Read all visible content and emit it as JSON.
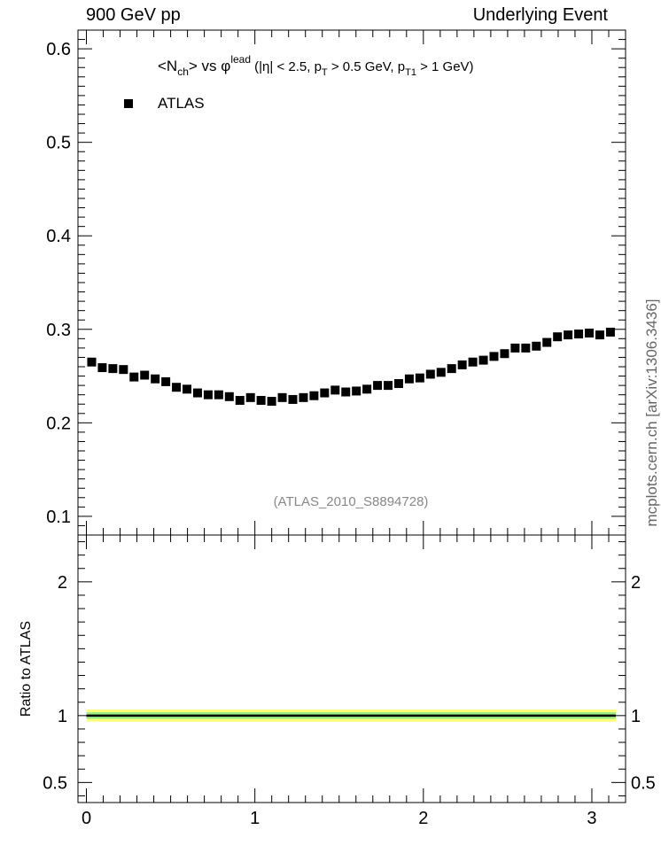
{
  "header": {
    "left": "900 GeV pp",
    "right": "Underlying Event"
  },
  "side_label": "mcplots.cern.ch [arXiv:1306.3436]",
  "reference_label": "(ATLAS_2010_S8894728)",
  "colors": {
    "data_marker": "#000000",
    "band_outer": "#ffff77",
    "band_inner": "#99ee88",
    "ref_text": "#888888"
  },
  "chart_data": [
    {
      "type": "scatter",
      "title": "<N_ch> vs φ^lead (|η| < 2.5, p_T > 0.5 GeV, p_T1 > 1 GeV)",
      "title_parts": {
        "n": "<N",
        "ch": "ch",
        "vs": "> vs φ",
        "lead": "lead",
        "cuts1": " (|η| < 2.5, p",
        "T": "T",
        "cuts2": " > 0.5 GeV, p",
        "T1": "T1",
        "cuts3": " > 1 GeV)"
      },
      "legend": "ATLAS",
      "legend_position": "top-left",
      "xlim": [
        -0.05,
        3.2
      ],
      "ylim": [
        0.08,
        0.62
      ],
      "x_ticks": [
        0,
        1,
        2,
        3
      ],
      "y_ticks": [
        0.1,
        0.2,
        0.3,
        0.4,
        0.5,
        0.6
      ],
      "y_tick_labels": [
        "0.1",
        "0.2",
        "0.3",
        "0.4",
        "0.5",
        "0.6"
      ],
      "series": [
        {
          "name": "ATLAS",
          "x": [
            0.0314,
            0.0942,
            0.157,
            0.2199,
            0.2827,
            0.3456,
            0.4084,
            0.4712,
            0.5341,
            0.5969,
            0.6597,
            0.7226,
            0.7854,
            0.8482,
            0.9111,
            0.9739,
            1.0367,
            1.0996,
            1.1624,
            1.2252,
            1.2881,
            1.3509,
            1.4137,
            1.4765,
            1.5394,
            1.6022,
            1.665,
            1.7279,
            1.7907,
            1.8535,
            1.9164,
            1.9792,
            2.042,
            2.1049,
            2.1677,
            2.2305,
            2.2934,
            2.3562,
            2.419,
            2.4819,
            2.5447,
            2.6075,
            2.6704,
            2.7332,
            2.796,
            2.8588,
            2.9217,
            2.9845,
            3.0473,
            3.1102
          ],
          "y": [
            0.265,
            0.259,
            0.258,
            0.257,
            0.249,
            0.251,
            0.247,
            0.244,
            0.238,
            0.236,
            0.232,
            0.23,
            0.23,
            0.228,
            0.224,
            0.227,
            0.224,
            0.223,
            0.227,
            0.225,
            0.227,
            0.229,
            0.232,
            0.235,
            0.233,
            0.234,
            0.236,
            0.24,
            0.24,
            0.242,
            0.247,
            0.248,
            0.252,
            0.254,
            0.258,
            0.262,
            0.265,
            0.267,
            0.271,
            0.274,
            0.28,
            0.28,
            0.282,
            0.286,
            0.292,
            0.294,
            0.295,
            0.296,
            0.294,
            0.297
          ]
        }
      ]
    },
    {
      "type": "area",
      "ylabel": "Ratio to ATLAS",
      "xlim": [
        -0.05,
        3.2
      ],
      "ylim": [
        0.35,
        2.35
      ],
      "x_ticks": [
        0,
        1,
        2,
        3
      ],
      "x_tick_labels": [
        "0",
        "1",
        "2",
        "3"
      ],
      "y_ticks": [
        0.5,
        1,
        2
      ],
      "y_tick_labels": [
        "0.5",
        "1",
        "2"
      ],
      "band_x_range": [
        0.0,
        3.1416
      ],
      "outer_band": [
        0.955,
        1.045
      ],
      "inner_band": [
        0.975,
        1.025
      ],
      "reference_line": 1
    }
  ]
}
